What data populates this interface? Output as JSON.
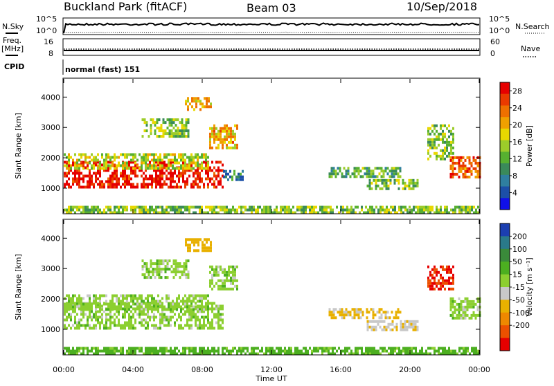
{
  "header": {
    "station": "Buckland Park (fitACF)",
    "beam": "Beam 03",
    "date": "10/Sep/2018"
  },
  "panels": {
    "nsky_label": "N.Sky",
    "nsearch_label": "N.Search",
    "nsky_ticks": [
      "10^5",
      "10^0"
    ],
    "nsearch_ticks": [
      "10^5",
      "10^0"
    ],
    "freq_label": "Freq.",
    "freq_unit": "[MHz]",
    "freq_ticks": [
      "16",
      "8"
    ],
    "nave_label": "Nave",
    "nave_ticks": [
      "60",
      "0"
    ],
    "cpid_label": "CPID",
    "cpid_value": "normal (fast) 151"
  },
  "chart_data": [
    {
      "type": "heatmap",
      "name": "power",
      "ylabel": "Slant Range [km]",
      "ylim": [
        180,
        4600
      ],
      "yticks": [
        1000,
        2000,
        3000,
        4000
      ],
      "xlabel": "Time UT",
      "xlim_hours": [
        0,
        24
      ],
      "xtick_labels": [
        "00:00",
        "04:00",
        "08:00",
        "12:00",
        "16:00",
        "20:00",
        "00:00"
      ],
      "colorbar": {
        "label": "Power [dB]",
        "ticks": [
          4,
          8,
          12,
          16,
          20,
          24,
          28
        ],
        "range": [
          0,
          30
        ],
        "colors": [
          "#1010e8",
          "#1c4fa8",
          "#2f7fa0",
          "#3a8a5a",
          "#57b030",
          "#9ccc2a",
          "#e8d800",
          "#f0a000",
          "#ee7000",
          "#ea3a00",
          "#e60000"
        ]
      },
      "regions": [
        {
          "t0": 0.0,
          "t1": 9.2,
          "r0": 1000,
          "r1": 1900,
          "v": 29
        },
        {
          "t0": 0.0,
          "t1": 8.4,
          "r0": 1650,
          "r1": 2150,
          "v": 16
        },
        {
          "t0": 4.5,
          "t1": 7.2,
          "r0": 2700,
          "r1": 3300,
          "v": 14
        },
        {
          "t0": 7.0,
          "t1": 8.5,
          "r0": 3600,
          "r1": 4000,
          "v": 20
        },
        {
          "t0": 8.4,
          "t1": 10.0,
          "r0": 2300,
          "r1": 3100,
          "v": 20
        },
        {
          "t0": 9.2,
          "t1": 10.5,
          "r0": 1300,
          "r1": 1600,
          "v": 8
        },
        {
          "t0": 15.3,
          "t1": 19.5,
          "r0": 1350,
          "r1": 1700,
          "v": 12
        },
        {
          "t0": 17.5,
          "t1": 20.5,
          "r0": 1000,
          "r1": 1300,
          "v": 14
        },
        {
          "t0": 21.0,
          "t1": 22.5,
          "r0": 2000,
          "r1": 3100,
          "v": 14
        },
        {
          "t0": 22.3,
          "t1": 24.0,
          "r0": 1400,
          "r1": 2050,
          "v": 24
        },
        {
          "t0": 0.0,
          "t1": 24.0,
          "r0": 180,
          "r1": 420,
          "v": 14
        }
      ]
    },
    {
      "type": "heatmap",
      "name": "velocity",
      "ylabel": "Slant Range [km]",
      "ylim": [
        180,
        4600
      ],
      "yticks": [
        1000,
        2000,
        3000,
        4000
      ],
      "xlabel": "Time UT",
      "xlim_hours": [
        0,
        24
      ],
      "xtick_labels": [
        "00:00",
        "04:00",
        "08:00",
        "12:00",
        "16:00",
        "20:00",
        "00:00"
      ],
      "colorbar": {
        "label": "Velocity [m s⁻¹]",
        "ticks": [
          "200",
          "100",
          "50",
          "15",
          "-15",
          "-50",
          "-100",
          "-200"
        ],
        "colors": [
          "#1c3fb0",
          "#2a7a8a",
          "#3a8a3a",
          "#4caf20",
          "#8ccf30",
          "#c8c8c8",
          "#e8b000",
          "#ee8800",
          "#ec5000",
          "#e60000"
        ]
      },
      "regions": [
        {
          "t0": 0.0,
          "t1": 9.2,
          "r0": 1000,
          "r1": 1900,
          "v": 0
        },
        {
          "t0": 0.0,
          "t1": 8.4,
          "r0": 1650,
          "r1": 2150,
          "v": 0
        },
        {
          "t0": 4.5,
          "t1": 7.2,
          "r0": 2700,
          "r1": 3300,
          "v": 0
        },
        {
          "t0": 7.0,
          "t1": 8.5,
          "r0": 3600,
          "r1": 4000,
          "v": -80
        },
        {
          "t0": 8.4,
          "t1": 10.0,
          "r0": 2300,
          "r1": 3100,
          "v": 0
        },
        {
          "t0": 15.3,
          "t1": 19.5,
          "r0": 1350,
          "r1": 1700,
          "v": -60
        },
        {
          "t0": 17.5,
          "t1": 20.5,
          "r0": 1000,
          "r1": 1300,
          "v": -40
        },
        {
          "t0": 21.0,
          "t1": 22.5,
          "r0": 2300,
          "r1": 3100,
          "v": -250
        },
        {
          "t0": 22.3,
          "t1": 24.0,
          "r0": 1400,
          "r1": 2050,
          "v": 0
        },
        {
          "t0": 0.0,
          "t1": 24.0,
          "r0": 180,
          "r1": 420,
          "v": 30
        }
      ]
    }
  ]
}
